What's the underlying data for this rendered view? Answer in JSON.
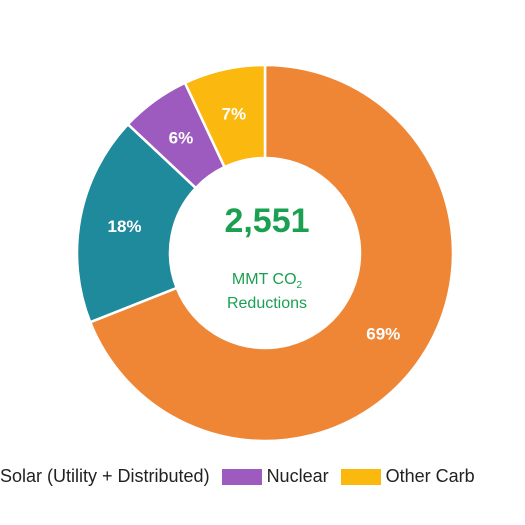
{
  "chart_data": {
    "type": "pie",
    "center": {
      "value": "2,551",
      "line1_main": "MMT CO",
      "line1_sub": "2",
      "line2": "Reductions"
    },
    "slices": [
      {
        "label": "69%",
        "value": 69,
        "color": "#ee8636",
        "legend": "Solar (Utility + Distributed)"
      },
      {
        "label": "18%",
        "value": 18,
        "color": "#1e8a9c",
        "legend": ""
      },
      {
        "label": "6%",
        "value": 6,
        "color": "#9e5bbf",
        "legend": "Nuclear"
      },
      {
        "label": "7%",
        "value": 7,
        "color": "#fbb80f",
        "legend": "Other Carb"
      }
    ]
  },
  "legend": {
    "first_text": "Solar (Utility + Distributed)",
    "items": [
      {
        "label": "Nuclear",
        "color": "#9e5bbf"
      },
      {
        "label": "Other Carb",
        "color": "#fbb80f"
      }
    ]
  }
}
